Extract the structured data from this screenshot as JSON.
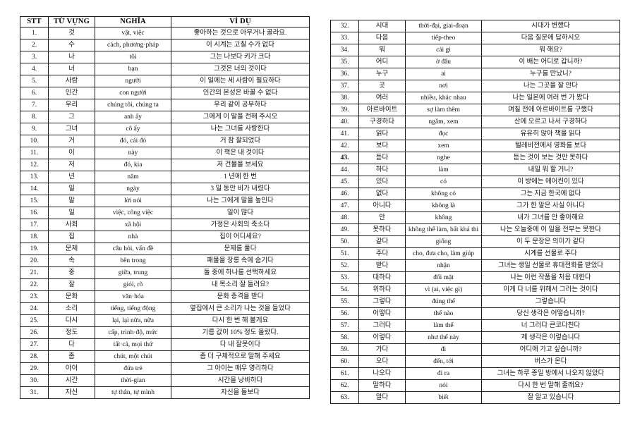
{
  "document": {
    "kind": "korean-vietnamese-vocabulary-sheet",
    "background_color": "#ffffff",
    "border_color": "#1a1a1a"
  },
  "table_left": {
    "headers": [
      "STT",
      "TỪ VỰNG",
      "NGHĨA",
      "VÍ DỤ"
    ],
    "rows": [
      [
        "1.",
        "것",
        "vật, việc",
        "좋아하는 것으로 아무거나 골라요."
      ],
      [
        "2.",
        "수",
        "cách, phương·pháp",
        "이 시계는 고칠 수가 없다"
      ],
      [
        "3.",
        "나",
        "tôi",
        "그는 나보다 키가 크다"
      ],
      [
        "4.",
        "너",
        "bạn",
        "그것은 너의 것이다"
      ],
      [
        "5.",
        "사람",
        "người",
        "이 일에는 세 사람이 필요하다"
      ],
      [
        "6.",
        "인간",
        "con người",
        "인간의 본성은 바꿀 수 없다"
      ],
      [
        "7.",
        "우리",
        "chúng tôi, chúng ta",
        "우리 같이 공부하다"
      ],
      [
        "8.",
        "그",
        "anh ấy",
        "그에게 이 말을 전해 주시오"
      ],
      [
        "9.",
        "그녀",
        "cô ấy",
        "나는 그녀를 사랑한다"
      ],
      [
        "10.",
        "거",
        "đó, cái đó",
        "거 참 잘되었다"
      ],
      [
        "11.",
        "이",
        "này",
        "이 책은 내 것이다"
      ],
      [
        "12.",
        "저",
        "đó, kia",
        "저 건물을 보세요"
      ],
      [
        "13.",
        "년",
        "năm",
        "1 년에 한 번"
      ],
      [
        "14.",
        "일",
        "ngày",
        "3 일 동안 비가 내렸다"
      ],
      [
        "15.",
        "말",
        "lời nói",
        "나는 그에게 말을 높인다"
      ],
      [
        "16.",
        "일",
        "việc, công việc",
        "일이 많다"
      ],
      [
        "17.",
        "사회",
        "xã hội",
        "가정은 사회의 축소다"
      ],
      [
        "18.",
        "집",
        "nhà",
        "집이 어디세요?"
      ],
      [
        "19.",
        "문제",
        "câu hỏi, vấn đề",
        "문제를 풀다"
      ],
      [
        "20.",
        "속",
        "bên trong",
        "패물을 장롱 속에 숨기다"
      ],
      [
        "21.",
        "중",
        "giữa, trung",
        "둘 중에 하나를 선택하세요"
      ],
      [
        "22.",
        "잘",
        "giỏi, rõ",
        "내 목소리 잘 들려요?"
      ],
      [
        "23.",
        "문화",
        "văn·hóa",
        "문화 충격을 받다"
      ],
      [
        "24.",
        "소리",
        "tiếng, tiếng động",
        "옆집에서 큰 소리가 나는 것을 들었다"
      ],
      [
        "25.",
        "다시",
        "lại, lại nữa, nữa",
        "다시 한 번 해 볼게요"
      ],
      [
        "26.",
        "정도",
        "cấp, trình·độ, mức",
        "기름 값이 10% 정도 올랐다."
      ],
      [
        "27.",
        "다",
        "tất·cả, mọi thứ",
        "다 내 잘못이다"
      ],
      [
        "28.",
        "좀",
        "chút, một chút",
        "좀 더 구체적으로 말해 주세요"
      ],
      [
        "29.",
        "아이",
        "đứa trẻ",
        "그 아이는 매우 영리하다"
      ],
      [
        "30.",
        "시간",
        "thời-gian",
        "시간을 낭비하다"
      ],
      [
        "31.",
        "자신",
        "tự thân, tự mình",
        "자신을 돌보다"
      ]
    ]
  },
  "table_right": {
    "bold_stt": [
      "43."
    ],
    "rows": [
      [
        "32.",
        "시대",
        "thời-đại, giai-đoạn",
        "시대가 변했다"
      ],
      [
        "33.",
        "다음",
        "tiếp-theo",
        "다음 질문에 답하시오"
      ],
      [
        "34.",
        "뭐",
        "cái gì",
        "뭐 해요?"
      ],
      [
        "35.",
        "어디",
        "ở đâu",
        "이 배는 어디로 갑니까?"
      ],
      [
        "36.",
        "누구",
        "ai",
        "누구를 만났니?"
      ],
      [
        "37.",
        "곳",
        "nơi",
        "나는 그곳을 잘 안다"
      ],
      [
        "38.",
        "여러",
        "nhiều, khác nhau",
        "나는 일본에 여러 번 가 봤다"
      ],
      [
        "39.",
        "아르바이트",
        "sự làm thêm",
        "며칠 전에 아르바이트를 구했다"
      ],
      [
        "40.",
        "구경하다",
        "ngắm, xem",
        "산에 오르고 나서 구경하다"
      ],
      [
        "41.",
        "읽다",
        "đọc",
        "유유히 앉아 책을 읽다"
      ],
      [
        "42.",
        "보다",
        "xem",
        "텔레비전에서 영화를 보다"
      ],
      [
        "43.",
        "듣다",
        "nghe",
        "듣는 것이 보는 것만 못하다"
      ],
      [
        "44.",
        "하다",
        "làm",
        "내일 뭐 할 거니?"
      ],
      [
        "45.",
        "있다",
        "có",
        "이 방에는 에어컨이 있다"
      ],
      [
        "46.",
        "없다",
        "không có",
        "그는 지금 한국에 없다"
      ],
      [
        "47.",
        "아니다",
        "không là",
        "그가 한 말은 사실 아니다"
      ],
      [
        "48.",
        "안",
        "không",
        "내가 그녀를 안 좋아해요"
      ],
      [
        "49.",
        "못하다",
        "không thể làm, bất khả thi",
        "나는 오늘중에 이 일을 전부는 못한다"
      ],
      [
        "50.",
        "같다",
        "giống",
        "이 두 문장은 의미가 같다"
      ],
      [
        "51.",
        "주다",
        "cho, đưa cho, làm giúp",
        "시계를 선물로 주다"
      ],
      [
        "52.",
        "받다",
        "nhận",
        "그녀는 생일 선물로 휴대전화를 받았다"
      ],
      [
        "53.",
        "대하다",
        "đối mặt",
        "나는 이런 작품을 처음 대한다"
      ],
      [
        "54.",
        "위하다",
        "vì (ai, việc gì)",
        "이게 다 너를 위해서 그러는 것이다"
      ],
      [
        "55.",
        "그렇다",
        "đúng thế",
        "그렇습니다"
      ],
      [
        "56.",
        "어떻다",
        "thế nào",
        "당신 생각은 어떻습니까?"
      ],
      [
        "57.",
        "그러다",
        "làm thế",
        "너 그러다 큰코다친다"
      ],
      [
        "58.",
        "이렇다",
        "như thế này",
        "제 생각은 이렇습니다"
      ],
      [
        "59.",
        "가다",
        "đi",
        "어디에 가고 싶습니까?"
      ],
      [
        "60.",
        "오다",
        "đến, tới",
        "버스가 온다"
      ],
      [
        "61.",
        "나오다",
        "đi ra",
        "그녀는 하루 종일 방에서 나오지 않았다"
      ],
      [
        "62.",
        "말하다",
        "nói",
        "다시 한 번 말해 줄래요?"
      ],
      [
        "63.",
        "알다",
        "biết",
        "잘 알고 있습니다"
      ]
    ]
  }
}
